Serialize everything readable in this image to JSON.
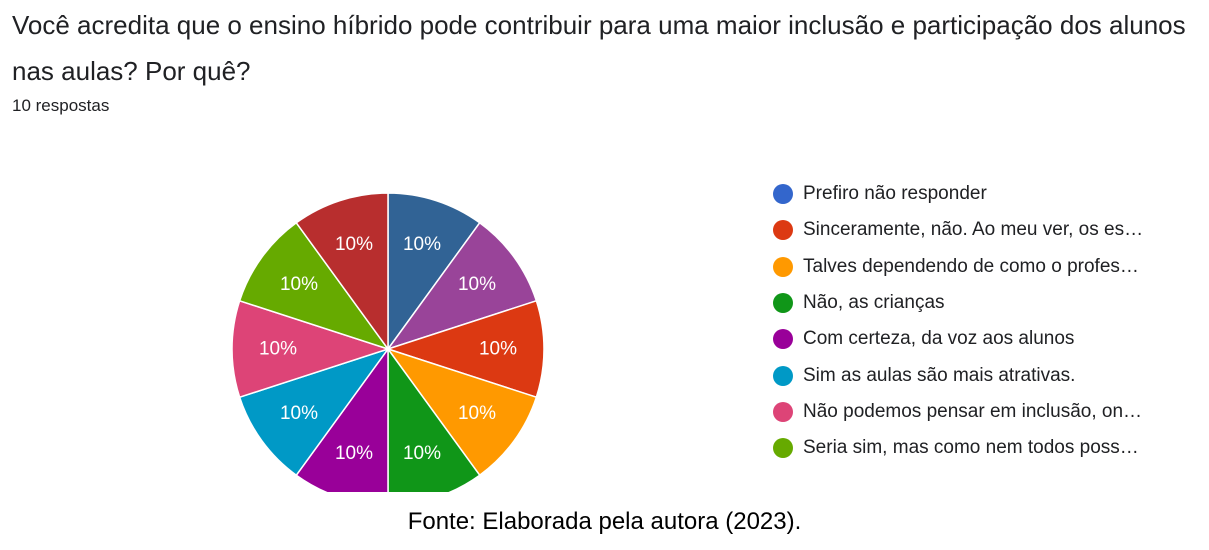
{
  "question": "Você acredita que o ensino híbrido pode contribuir para uma maior inclusão e participação dos alunos nas aulas? Por quê?",
  "responses": "10 respostas",
  "source": "Fonte: Elaborada pela autora (2023).",
  "chart_data": {
    "type": "pie",
    "title": "Você acredita que o ensino híbrido pode contribuir para uma maior inclusão e participação dos alunos nas aulas? Por quê?",
    "legend_position": "right",
    "legend": [
      {
        "label": "Prefiro não responder",
        "color": "#3366cc"
      },
      {
        "label": "Sinceramente, não. Ao meu ver, os es…",
        "color": "#dc3912"
      },
      {
        "label": "Talves dependendo de como o profes…",
        "color": "#ff9900"
      },
      {
        "label": "Não, as crianças",
        "color": "#109618"
      },
      {
        "label": "Com certeza, da voz aos alunos",
        "color": "#990099"
      },
      {
        "label": "Sim as aulas são mais atrativas.",
        "color": "#0099c6"
      },
      {
        "label": "Não podemos pensar em inclusão, on…",
        "color": "#dd4477"
      },
      {
        "label": "Seria sim, mas como nem todos poss…",
        "color": "#66aa00"
      }
    ],
    "slices": [
      {
        "value": 10,
        "label": "10%",
        "color": "#316395"
      },
      {
        "value": 10,
        "label": "10%",
        "color": "#994499"
      },
      {
        "value": 10,
        "label": "10%",
        "color": "#dc3912"
      },
      {
        "value": 10,
        "label": "10%",
        "color": "#ff9900"
      },
      {
        "value": 10,
        "label": "10%",
        "color": "#109618"
      },
      {
        "value": 10,
        "label": "10%",
        "color": "#990099"
      },
      {
        "value": 10,
        "label": "10%",
        "color": "#0099c6"
      },
      {
        "value": 10,
        "label": "10%",
        "color": "#dd4477"
      },
      {
        "value": 10,
        "label": "10%",
        "color": "#66aa00"
      },
      {
        "value": 10,
        "label": "10%",
        "color": "#b82e2e"
      }
    ]
  }
}
